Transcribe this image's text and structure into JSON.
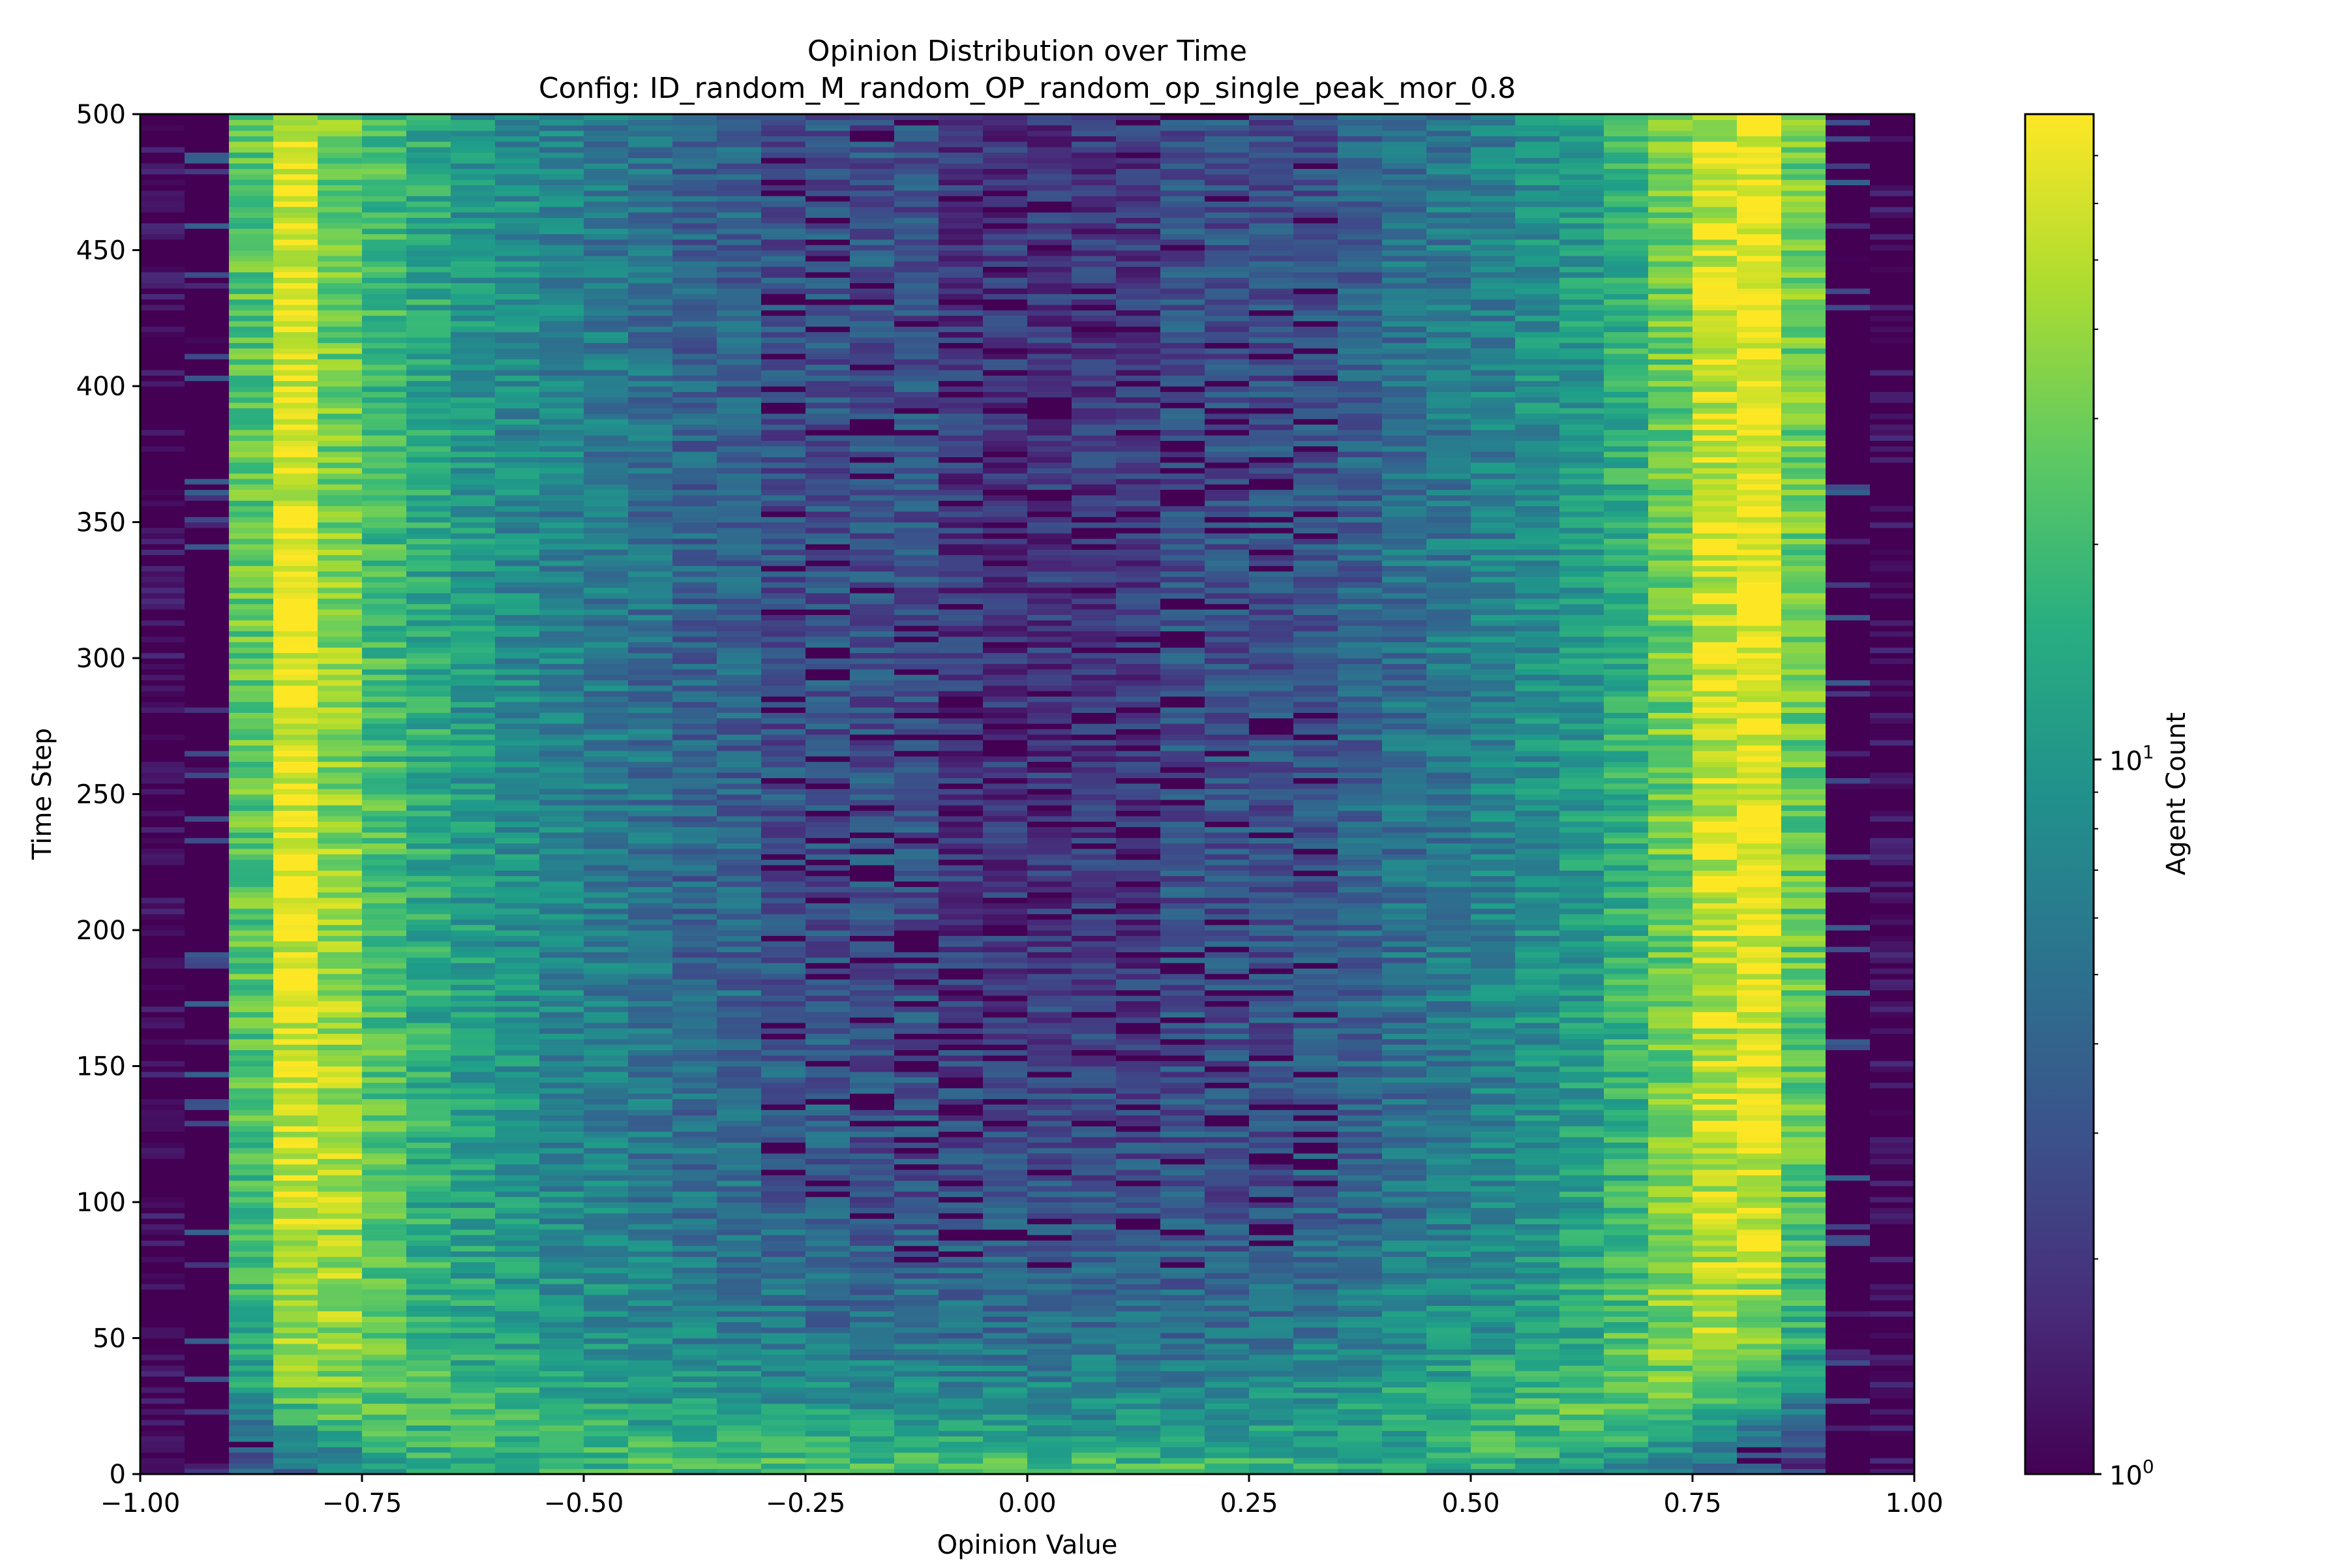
{
  "chart_data": {
    "type": "heatmap",
    "title": "Opinion Distribution over Time",
    "subtitle": "Config: ID_random_M_random_OP_random_op_single_peak_mor_0.8",
    "xlabel": "Opinion Value",
    "ylabel": "Time Step",
    "xlim": [
      -1.0,
      1.0
    ],
    "ylim": [
      0,
      500
    ],
    "x_ticks": [
      "−1.00",
      "−0.75",
      "−0.50",
      "−0.25",
      "0.00",
      "0.25",
      "0.50",
      "0.75",
      "1.00"
    ],
    "y_ticks": [
      "0",
      "50",
      "100",
      "150",
      "200",
      "250",
      "300",
      "350",
      "400",
      "450",
      "500"
    ],
    "colorbar": {
      "label": "Agent Count",
      "scale": "log",
      "colormap": "viridis",
      "range": [
        1,
        80
      ],
      "tick_labels": [
        {
          "base": "10",
          "exp": "0",
          "value": 1
        },
        {
          "base": "10",
          "exp": "1",
          "value": 10
        }
      ]
    },
    "n_bins": 40,
    "bin_width": 0.05,
    "bin_centers": [
      -0.975,
      -0.925,
      -0.875,
      -0.825,
      -0.775,
      -0.725,
      -0.675,
      -0.625,
      -0.575,
      -0.525,
      -0.475,
      -0.425,
      -0.375,
      -0.325,
      -0.275,
      -0.225,
      -0.175,
      -0.125,
      -0.075,
      -0.025,
      0.025,
      0.075,
      0.125,
      0.175,
      0.225,
      0.275,
      0.325,
      0.375,
      0.425,
      0.475,
      0.525,
      0.575,
      0.625,
      0.675,
      0.725,
      0.775,
      0.825,
      0.875,
      0.925,
      0.975
    ],
    "time_samples": [
      0,
      10,
      25,
      50,
      100,
      200,
      300,
      400,
      500
    ],
    "count_profile_by_time": [
      [
        1,
        1,
        5,
        5,
        7,
        10,
        12,
        12,
        14,
        16,
        18,
        20,
        20,
        22,
        24,
        24,
        24,
        26,
        26,
        24,
        24,
        24,
        22,
        22,
        20,
        20,
        18,
        16,
        14,
        12,
        12,
        10,
        8,
        7,
        5,
        4,
        3,
        2,
        1,
        1
      ],
      [
        1,
        1,
        3,
        5,
        8,
        14,
        18,
        20,
        18,
        18,
        20,
        18,
        20,
        18,
        16,
        16,
        16,
        14,
        14,
        14,
        12,
        12,
        12,
        12,
        12,
        14,
        12,
        12,
        14,
        16,
        18,
        18,
        16,
        14,
        10,
        6,
        4,
        3,
        1,
        1
      ],
      [
        1,
        2,
        10,
        20,
        30,
        25,
        20,
        18,
        16,
        14,
        14,
        12,
        12,
        12,
        10,
        10,
        10,
        10,
        8,
        8,
        8,
        8,
        8,
        8,
        8,
        10,
        10,
        12,
        14,
        16,
        18,
        20,
        25,
        30,
        25,
        15,
        10,
        6,
        2,
        1
      ],
      [
        1,
        1,
        15,
        40,
        40,
        25,
        18,
        14,
        12,
        10,
        9,
        8,
        7,
        6,
        6,
        5,
        5,
        5,
        5,
        5,
        5,
        5,
        5,
        5,
        5,
        6,
        6,
        7,
        8,
        9,
        10,
        12,
        16,
        22,
        35,
        45,
        35,
        15,
        1,
        1
      ],
      [
        1,
        1,
        20,
        55,
        45,
        25,
        16,
        12,
        10,
        8,
        7,
        6,
        5,
        5,
        4,
        4,
        3,
        3,
        3,
        3,
        3,
        3,
        3,
        3,
        3,
        3,
        4,
        4,
        5,
        6,
        7,
        9,
        12,
        18,
        30,
        50,
        60,
        25,
        1,
        1
      ],
      [
        1,
        1,
        25,
        65,
        40,
        22,
        15,
        11,
        9,
        7,
        6,
        5,
        4,
        4,
        3,
        3,
        3,
        3,
        2,
        2,
        2,
        2,
        2,
        3,
        3,
        3,
        3,
        4,
        5,
        6,
        7,
        9,
        11,
        16,
        28,
        55,
        70,
        28,
        1,
        1
      ],
      [
        1,
        2,
        28,
        70,
        35,
        20,
        14,
        10,
        8,
        7,
        6,
        5,
        4,
        4,
        3,
        3,
        3,
        3,
        2,
        2,
        2,
        2,
        2,
        3,
        3,
        3,
        3,
        4,
        5,
        6,
        7,
        9,
        11,
        16,
        30,
        60,
        75,
        30,
        2,
        1
      ],
      [
        1,
        2,
        25,
        65,
        30,
        20,
        14,
        10,
        8,
        7,
        6,
        5,
        4,
        4,
        3,
        3,
        3,
        3,
        2,
        2,
        2,
        2,
        2,
        3,
        3,
        3,
        3,
        4,
        5,
        6,
        7,
        9,
        11,
        16,
        28,
        55,
        75,
        30,
        2,
        1
      ],
      [
        1,
        1,
        25,
        65,
        30,
        20,
        14,
        10,
        8,
        7,
        6,
        5,
        4,
        4,
        3,
        3,
        3,
        3,
        2,
        2,
        2,
        2,
        2,
        3,
        3,
        3,
        3,
        4,
        5,
        6,
        7,
        9,
        11,
        16,
        28,
        55,
        75,
        30,
        1,
        1
      ]
    ]
  }
}
